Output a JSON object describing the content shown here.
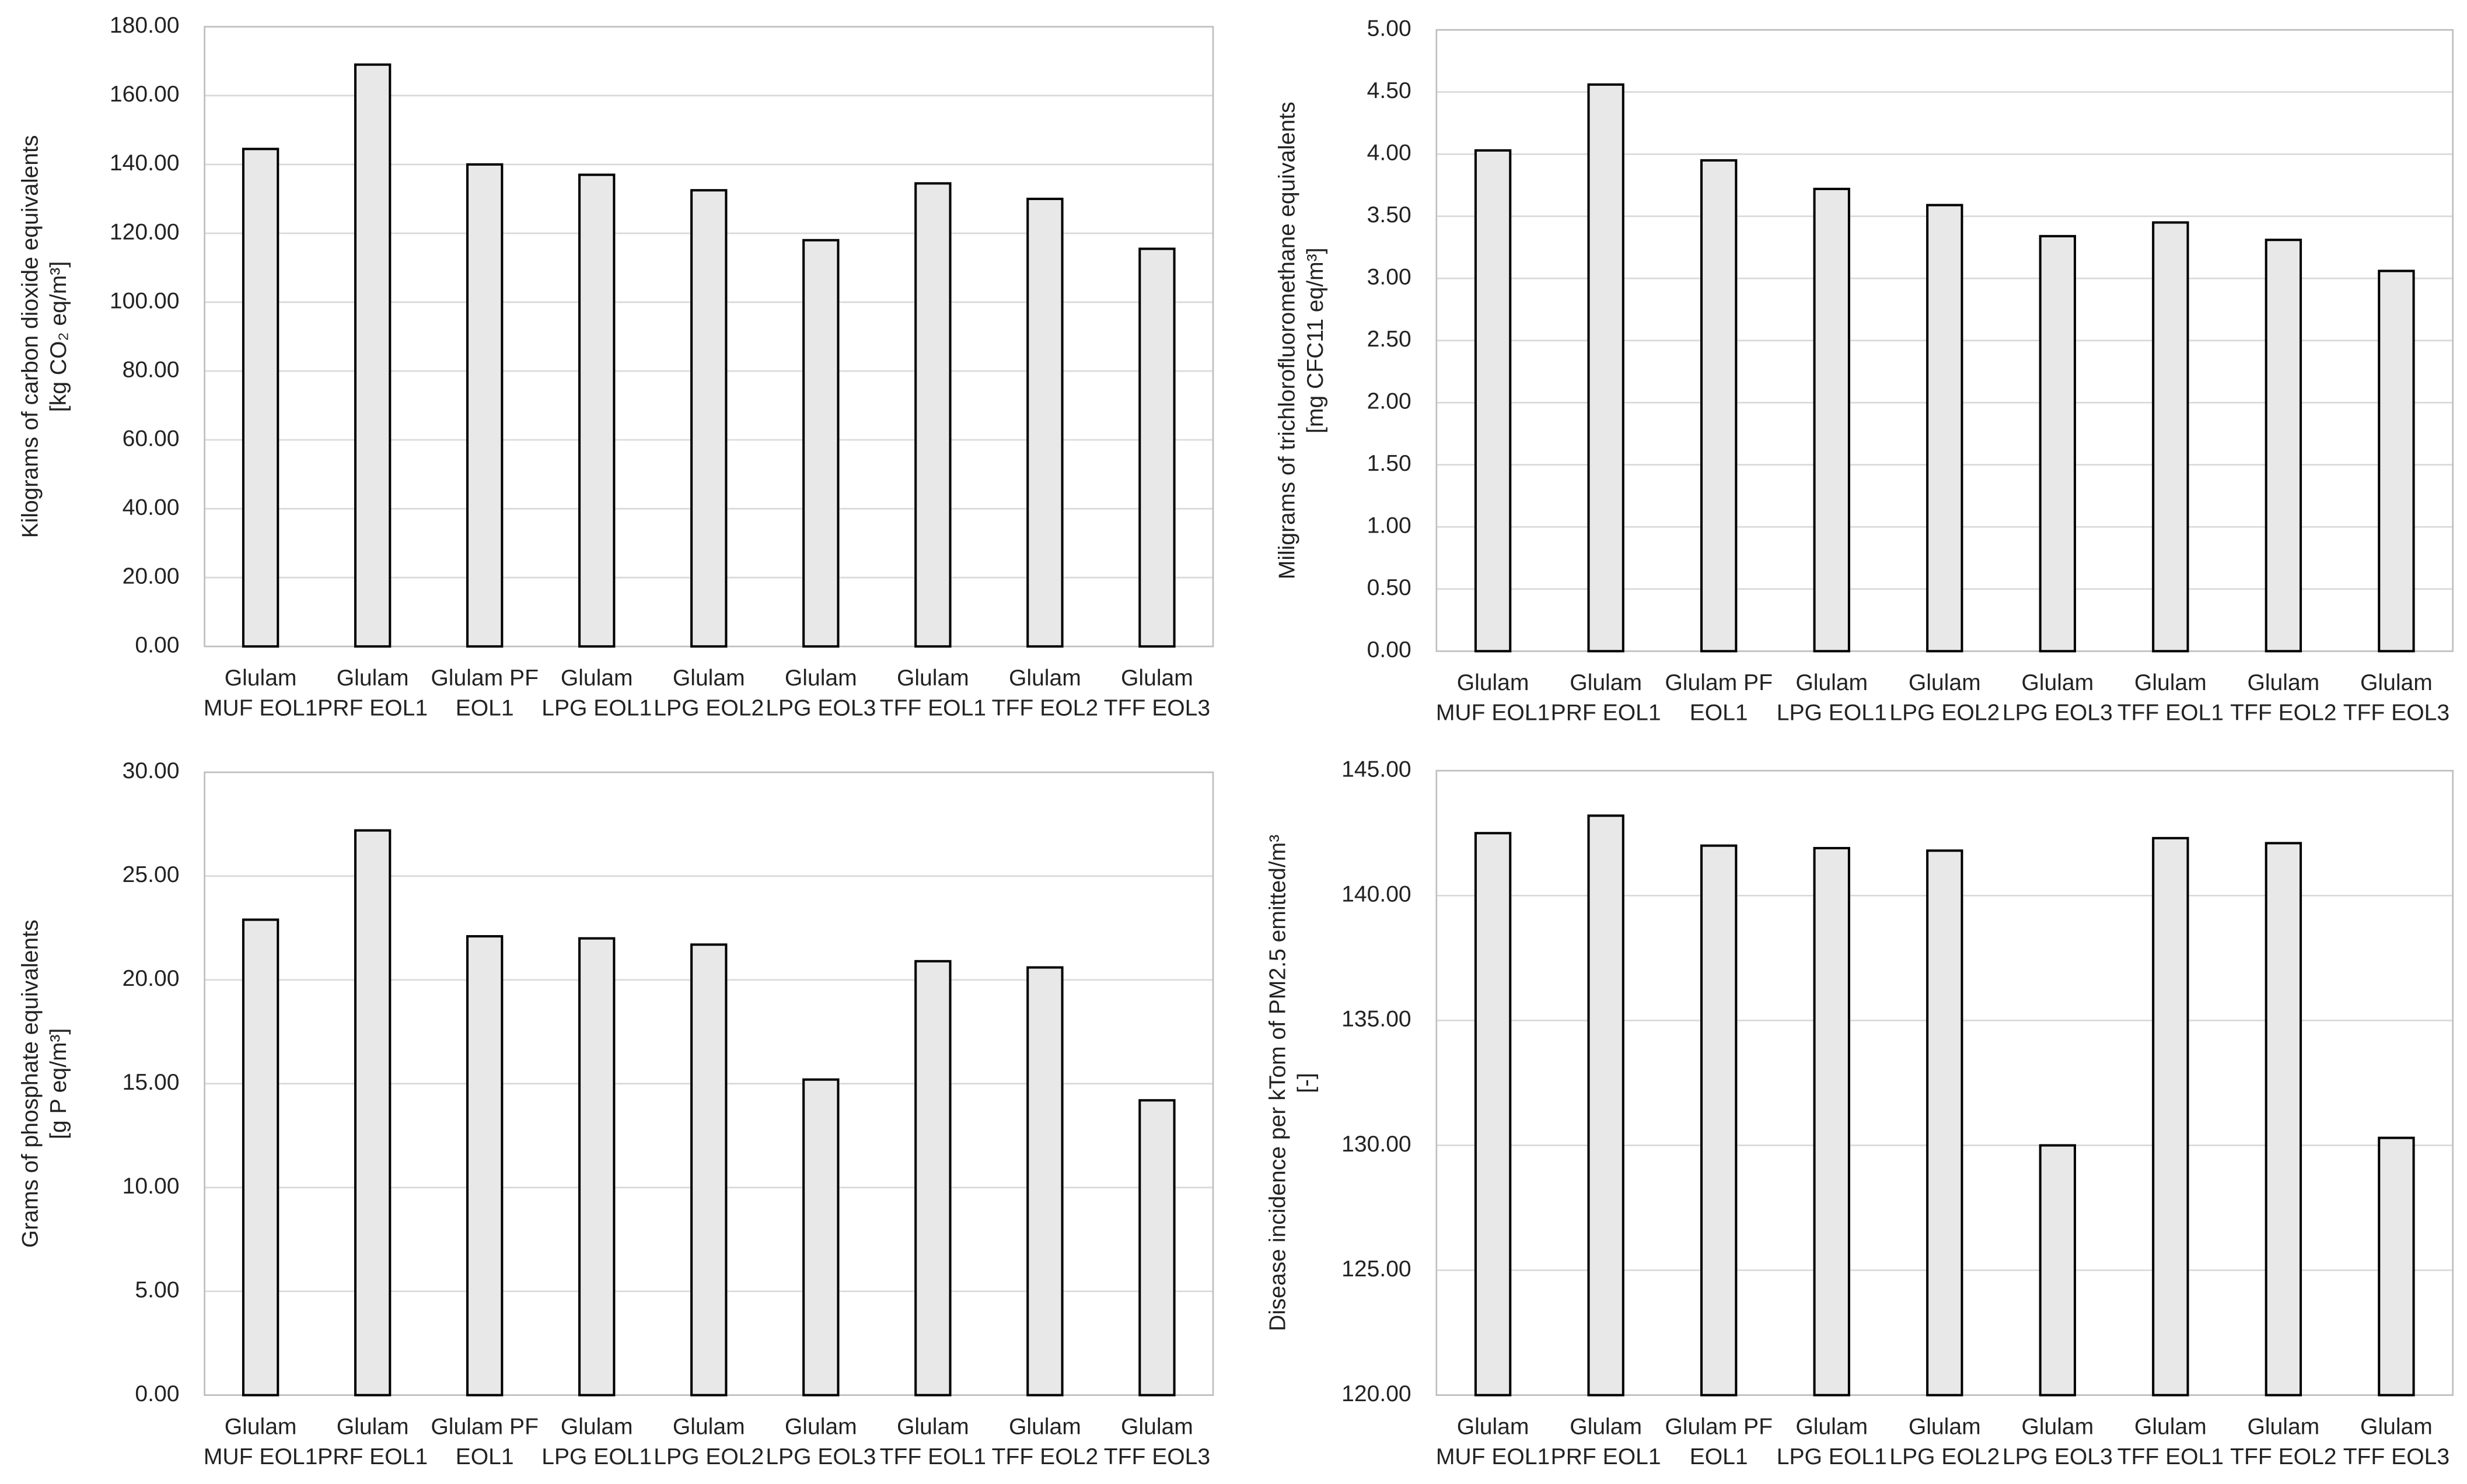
{
  "chart_data": [
    {
      "type": "bar",
      "y_label": [
        "Kilograms of carbon dioxide equivalents",
        "[kg CO₂ eq/m³]"
      ],
      "categories": [
        [
          "Glulam",
          "MUF EOL1"
        ],
        [
          "Glulam",
          "PRF EOL1"
        ],
        [
          "Glulam PF",
          "EOL1"
        ],
        [
          "Glulam",
          "LPG EOL1"
        ],
        [
          "Glulam",
          "LPG EOL2"
        ],
        [
          "Glulam",
          "LPG EOL3"
        ],
        [
          "Glulam",
          "TFF EOL1"
        ],
        [
          "Glulam",
          "TFF EOL2"
        ],
        [
          "Glulam",
          "TFF EOL3"
        ]
      ],
      "values": [
        144.5,
        169,
        140,
        137,
        132.5,
        118,
        134.5,
        130,
        115.5
      ],
      "color": "#e8e8e8",
      "ylim": [
        0,
        180
      ],
      "grid": true,
      "yticks": [
        {
          "value": 0,
          "label": "0.00"
        },
        {
          "value": 20,
          "label": "20.00"
        },
        {
          "value": 40,
          "label": "40.00"
        },
        {
          "value": 60,
          "label": "60.00"
        },
        {
          "value": 80,
          "label": "80.00"
        },
        {
          "value": 100,
          "label": "100.00"
        },
        {
          "value": 120,
          "label": "120.00"
        },
        {
          "value": 140,
          "label": "140.00"
        },
        {
          "value": 160,
          "label": "160.00"
        },
        {
          "value": 180,
          "label": "180.00"
        }
      ]
    },
    {
      "type": "bar",
      "y_label": [
        "Miligrams of trichlorofluoromethane equivalents",
        "[mg CFC11 eq/m³]"
      ],
      "categories": [
        [
          "Glulam",
          "MUF EOL1"
        ],
        [
          "Glulam",
          "PRF EOL1"
        ],
        [
          "Glulam PF",
          "EOL1"
        ],
        [
          "Glulam",
          "LPG EOL1"
        ],
        [
          "Glulam",
          "LPG EOL2"
        ],
        [
          "Glulam",
          "LPG EOL3"
        ],
        [
          "Glulam",
          "TFF EOL1"
        ],
        [
          "Glulam",
          "TFF EOL2"
        ],
        [
          "Glulam",
          "TFF EOL3"
        ]
      ],
      "values": [
        4.03,
        4.56,
        3.95,
        3.72,
        3.59,
        3.34,
        3.45,
        3.31,
        3.06
      ],
      "color": "#e8e8e8",
      "ylim": [
        0,
        5
      ],
      "grid": true,
      "yticks": [
        {
          "value": 0,
          "label": "0.00"
        },
        {
          "value": 0.5,
          "label": "0.50"
        },
        {
          "value": 1,
          "label": "1.00"
        },
        {
          "value": 1.5,
          "label": "1.50"
        },
        {
          "value": 2,
          "label": "2.00"
        },
        {
          "value": 2.5,
          "label": "2.50"
        },
        {
          "value": 3,
          "label": "3.00"
        },
        {
          "value": 3.5,
          "label": "3.50"
        },
        {
          "value": 4,
          "label": "4.00"
        },
        {
          "value": 4.5,
          "label": "4.50"
        },
        {
          "value": 5,
          "label": "5.00"
        }
      ]
    },
    {
      "type": "bar",
      "y_label": [
        "Grams of phosphate equivalents",
        "[g P eq/m³]"
      ],
      "categories": [
        [
          "Glulam",
          "MUF EOL1"
        ],
        [
          "Glulam",
          "PRF EOL1"
        ],
        [
          "Glulam PF",
          "EOL1"
        ],
        [
          "Glulam",
          "LPG EOL1"
        ],
        [
          "Glulam",
          "LPG EOL2"
        ],
        [
          "Glulam",
          "LPG EOL3"
        ],
        [
          "Glulam",
          "TFF EOL1"
        ],
        [
          "Glulam",
          "TFF EOL2"
        ],
        [
          "Glulam",
          "TFF EOL3"
        ]
      ],
      "values": [
        22.9,
        27.2,
        22.1,
        22.0,
        21.7,
        15.2,
        20.9,
        20.6,
        14.2
      ],
      "color": "#e8e8e8",
      "ylim": [
        0,
        30
      ],
      "grid": true,
      "yticks": [
        {
          "value": 0,
          "label": "0.00"
        },
        {
          "value": 5,
          "label": "5.00"
        },
        {
          "value": 10,
          "label": "10.00"
        },
        {
          "value": 15,
          "label": "15.00"
        },
        {
          "value": 20,
          "label": "20.00"
        },
        {
          "value": 25,
          "label": "25.00"
        },
        {
          "value": 30,
          "label": "30.00"
        }
      ]
    },
    {
      "type": "bar",
      "y_label": [
        "Disease incidence per kTom  of PM2.5 emitted/m³",
        "[-]"
      ],
      "categories": [
        [
          "Glulam",
          "MUF EOL1"
        ],
        [
          "Glulam",
          "PRF EOL1"
        ],
        [
          "Glulam PF",
          "EOL1"
        ],
        [
          "Glulam",
          "LPG EOL1"
        ],
        [
          "Glulam",
          "LPG EOL2"
        ],
        [
          "Glulam",
          "LPG EOL3"
        ],
        [
          "Glulam",
          "TFF EOL1"
        ],
        [
          "Glulam",
          "TFF EOL2"
        ],
        [
          "Glulam",
          "TFF EOL3"
        ]
      ],
      "values": [
        142.5,
        143.2,
        142.0,
        141.9,
        141.8,
        130.0,
        142.3,
        142.1,
        130.3
      ],
      "color": "#e8e8e8",
      "ylim": [
        120,
        145
      ],
      "grid": true,
      "yticks": [
        {
          "value": 120,
          "label": "120.00"
        },
        {
          "value": 125,
          "label": "125.00"
        },
        {
          "value": 130,
          "label": "130.00"
        },
        {
          "value": 135,
          "label": "135.00"
        },
        {
          "value": 140,
          "label": "140.00"
        },
        {
          "value": 145,
          "label": "145.00"
        }
      ]
    }
  ]
}
